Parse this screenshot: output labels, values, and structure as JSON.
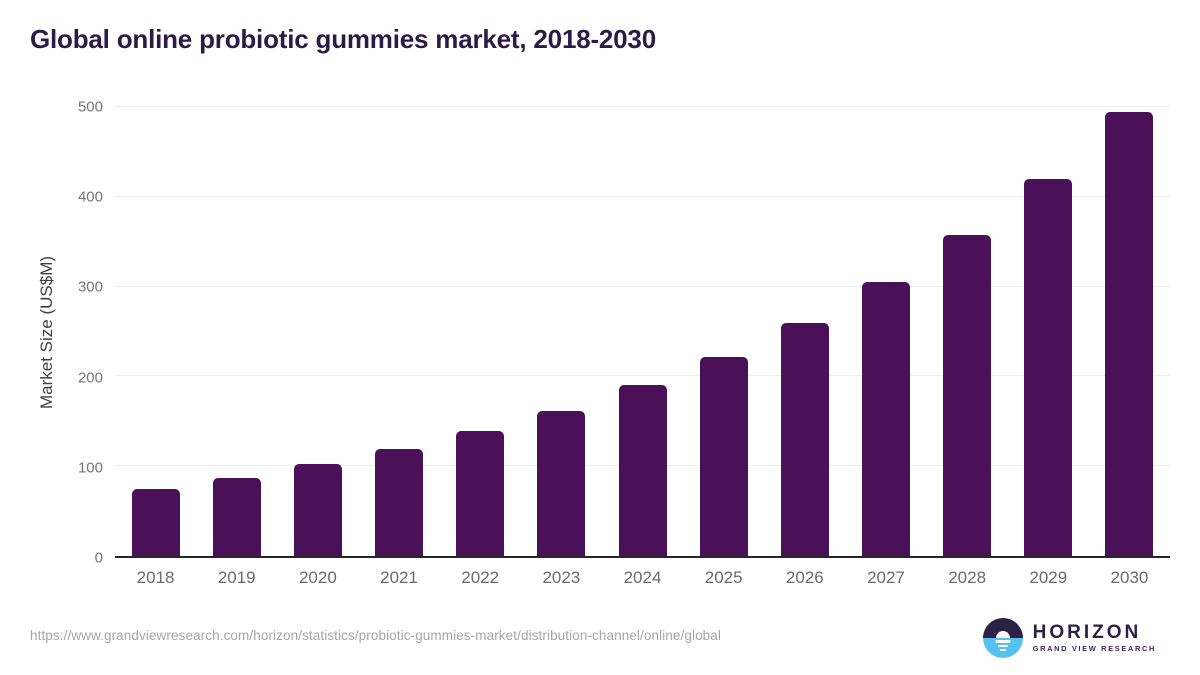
{
  "title": "Global online probiotic gummies market, 2018-2030",
  "chart_data": {
    "type": "bar",
    "title": "Global online probiotic gummies market, 2018-2030",
    "categories": [
      "2018",
      "2019",
      "2020",
      "2021",
      "2022",
      "2023",
      "2024",
      "2025",
      "2026",
      "2027",
      "2028",
      "2029",
      "2030"
    ],
    "values": [
      75,
      87,
      102,
      119,
      139,
      162,
      190,
      222,
      260,
      305,
      358,
      420,
      495
    ],
    "xlabel": "",
    "ylabel": "Market Size (US$M)",
    "ylim": [
      0,
      500
    ],
    "y_ticks": [
      0,
      100,
      200,
      300,
      400,
      500
    ],
    "grid": "horizontal-only",
    "legend": "none",
    "bar_color": "#4a1158"
  },
  "colors": {
    "title": "#2e1a47",
    "bar": "#4a1158",
    "axis_line": "#262626",
    "gridline": "#ececec",
    "y_tick_label": "#757575",
    "x_tick_label": "#6b6b6b",
    "source_url": "#a5a5a5",
    "logo_dark": "#2b2145",
    "logo_blue": "#56c1ef"
  },
  "footer": {
    "source_url": "https://www.grandviewresearch.com/horizon/statistics/probiotic-gummies-market/distribution-channel/online/global",
    "logo": {
      "name": "HORIZON",
      "subtitle": "GRAND VIEW RESEARCH",
      "icon": "horizon-sun-over-water-icon"
    }
  }
}
